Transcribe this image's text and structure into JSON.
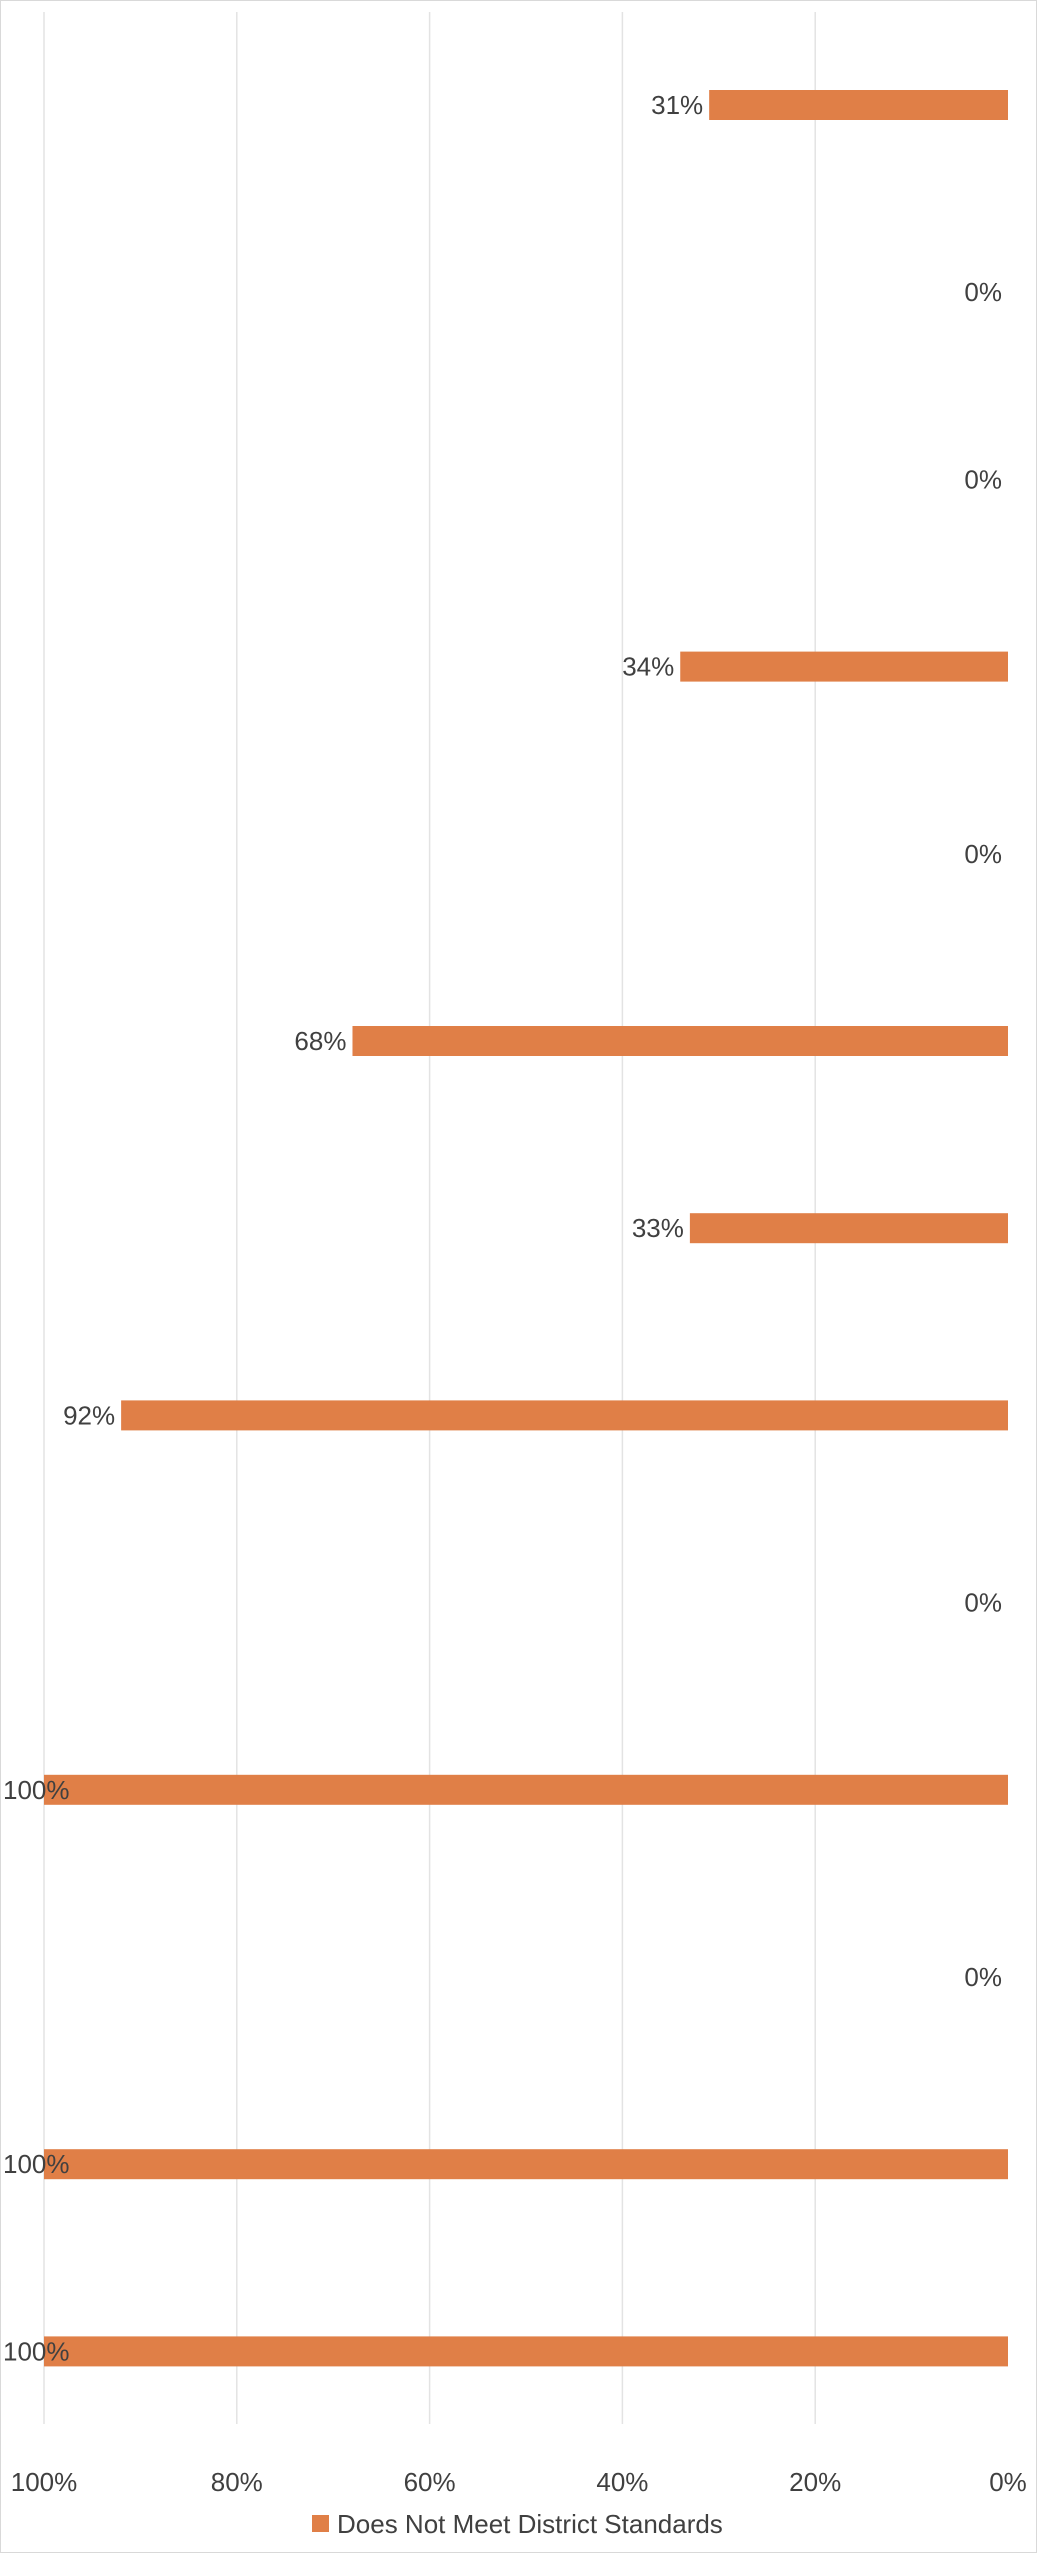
{
  "chart_data": {
    "type": "bar",
    "orientation": "horizontal",
    "x_axis_reversed": true,
    "xlim": [
      0,
      100
    ],
    "x_ticks": [
      0,
      20,
      40,
      60,
      80,
      100
    ],
    "x_tick_labels": [
      "0%",
      "20%",
      "40%",
      "60%",
      "80%",
      "100%"
    ],
    "grid": true,
    "legend_position": "bottom",
    "series": [
      {
        "name": "Does Not Meet District Standards",
        "color": "#E07F47",
        "values": [
          31,
          0,
          0,
          34,
          0,
          68,
          33,
          92,
          0,
          100,
          0,
          100,
          100
        ],
        "labels": [
          "31%",
          "0%",
          "0%",
          "34%",
          "0%",
          "68%",
          "33%",
          "92%",
          "0%",
          "100%",
          "0%",
          "100%",
          "100%"
        ]
      }
    ]
  },
  "colors": {
    "bar": "#E07F47",
    "gridline": "#e3e3e3",
    "text": "#404040",
    "frame": "#d9d9d9"
  }
}
